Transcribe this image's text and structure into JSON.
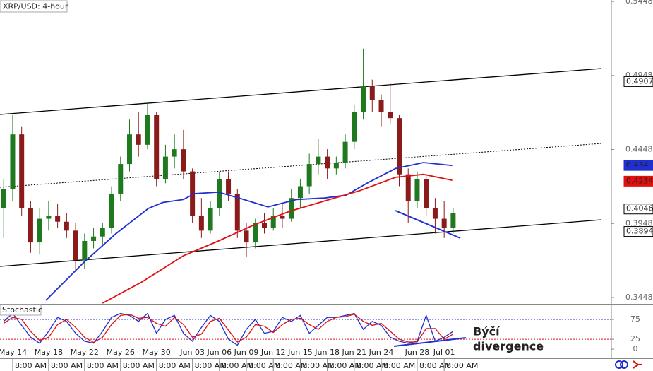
{
  "chart_data": [
    {
      "type": "candlestick",
      "title": "XRP/USD: 4-hour",
      "x": [
        -1,
        0,
        1,
        2,
        3,
        4,
        5,
        6,
        7,
        8,
        9,
        10,
        11,
        12,
        13,
        14,
        15,
        16,
        17,
        18,
        19,
        20,
        21,
        22,
        23,
        24,
        25,
        26,
        27,
        28,
        29,
        30,
        31,
        32,
        33,
        34,
        35,
        36,
        37,
        38,
        39,
        40,
        41,
        42,
        43,
        44,
        45,
        46,
        47,
        48,
        49
      ],
      "open": [
        0.405,
        0.418,
        0.455,
        0.405,
        0.382,
        0.398,
        0.4,
        0.396,
        0.39,
        0.37,
        0.383,
        0.386,
        0.392,
        0.415,
        0.435,
        0.455,
        0.448,
        0.468,
        0.425,
        0.44,
        0.445,
        0.43,
        0.4,
        0.39,
        0.405,
        0.425,
        0.415,
        0.39,
        0.382,
        0.395,
        0.392,
        0.4,
        0.398,
        0.412,
        0.42,
        0.435,
        0.44,
        0.432,
        0.436,
        0.45,
        0.47,
        0.488,
        0.478,
        0.47,
        0.466,
        0.428,
        0.41,
        0.425,
        0.405,
        0.398,
        0.392
      ],
      "high": [
        0.425,
        0.468,
        0.46,
        0.41,
        0.405,
        0.41,
        0.408,
        0.402,
        0.395,
        0.388,
        0.392,
        0.395,
        0.42,
        0.44,
        0.465,
        0.47,
        0.476,
        0.47,
        0.448,
        0.455,
        0.458,
        0.432,
        0.412,
        0.41,
        0.43,
        0.43,
        0.418,
        0.395,
        0.398,
        0.402,
        0.405,
        0.408,
        0.418,
        0.425,
        0.442,
        0.452,
        0.445,
        0.44,
        0.455,
        0.475,
        0.513,
        0.492,
        0.482,
        0.49,
        0.468,
        0.432,
        0.43,
        0.428,
        0.412,
        0.41,
        0.405
      ],
      "low": [
        0.385,
        0.41,
        0.4,
        0.375,
        0.374,
        0.39,
        0.392,
        0.385,
        0.362,
        0.364,
        0.378,
        0.38,
        0.388,
        0.41,
        0.43,
        0.44,
        0.445,
        0.42,
        0.422,
        0.432,
        0.425,
        0.395,
        0.385,
        0.388,
        0.4,
        0.41,
        0.385,
        0.372,
        0.378,
        0.388,
        0.39,
        0.392,
        0.396,
        0.405,
        0.415,
        0.428,
        0.425,
        0.428,
        0.432,
        0.445,
        0.465,
        0.47,
        0.46,
        0.462,
        0.42,
        0.395,
        0.405,
        0.4,
        0.388,
        0.385,
        0.388
      ],
      "close": [
        0.418,
        0.455,
        0.405,
        0.382,
        0.398,
        0.4,
        0.396,
        0.39,
        0.37,
        0.383,
        0.386,
        0.392,
        0.415,
        0.435,
        0.455,
        0.448,
        0.468,
        0.425,
        0.44,
        0.445,
        0.43,
        0.4,
        0.39,
        0.405,
        0.425,
        0.415,
        0.39,
        0.382,
        0.395,
        0.392,
        0.4,
        0.398,
        0.412,
        0.42,
        0.435,
        0.44,
        0.432,
        0.436,
        0.45,
        0.47,
        0.488,
        0.478,
        0.47,
        0.466,
        0.428,
        0.41,
        0.425,
        0.405,
        0.398,
        0.392,
        0.402
      ],
      "up_color": "#1f7a1f",
      "down_color": "#8b1a1a",
      "series": [
        {
          "color": "#1f2fd0",
          "x": [
            3.7,
            8.0,
            11.5,
            15.1,
            16.7,
            19.0,
            20.2,
            22.9,
            25.7,
            28.4,
            31.6,
            34.7,
            37.1,
            39.4,
            42.6,
            45.7,
            48.9
          ],
          "values": [
            0.343,
            0.369,
            0.388,
            0.405,
            0.409,
            0.411,
            0.415,
            0.416,
            0.411,
            0.406,
            0.411,
            0.412,
            0.414,
            0.422,
            0.432,
            0.436,
            0.434
          ]
        },
        {
          "color": "#e01010",
          "x": [
            10.0,
            14.3,
            19.0,
            22.9,
            26.9,
            30.8,
            34.7,
            38.6,
            42.6,
            45.7,
            48.9
          ],
          "values": [
            0.341,
            0.355,
            0.373,
            0.383,
            0.394,
            0.403,
            0.41,
            0.417,
            0.426,
            0.428,
            0.424
          ]
        }
      ],
      "price_tags": [
        0.4907,
        0.434,
        0.4234,
        0.4046,
        0.3894
      ],
      "price_tag_colors": [
        "#000000",
        "#1f2fd0",
        "#e01010",
        "#000000",
        "#000000"
      ],
      "xlim": [
        -1.41,
        66.6
      ],
      "ylim": [
        0.3405,
        0.5458
      ],
      "yticks": [
        0.5448,
        0.4948,
        0.4448,
        0.3948,
        0.3448
      ]
    },
    {
      "type": "line",
      "title": "Stochastic",
      "x": [
        -1,
        0,
        1,
        2,
        3,
        4,
        5,
        6,
        7,
        8,
        9,
        10,
        11,
        12,
        13,
        14,
        15,
        16,
        17,
        18,
        19,
        20,
        21,
        22,
        23,
        24,
        25,
        26,
        27,
        28,
        29,
        30,
        31,
        32,
        33,
        34,
        35,
        36,
        37,
        38,
        39,
        40,
        41,
        42,
        43,
        44,
        45,
        46,
        47,
        48,
        49
      ],
      "series": [
        {
          "color": "#1f2fd0",
          "values": [
            70,
            90,
            60,
            30,
            15,
            45,
            80,
            70,
            40,
            20,
            15,
            45,
            80,
            90,
            85,
            70,
            90,
            40,
            75,
            85,
            40,
            20,
            55,
            85,
            70,
            25,
            10,
            50,
            75,
            40,
            45,
            80,
            70,
            85,
            40,
            60,
            80,
            80,
            85,
            90,
            50,
            70,
            60,
            30,
            20,
            15,
            20,
            85,
            20,
            30,
            45
          ]
        },
        {
          "color": "#e01010",
          "values": [
            65,
            80,
            75,
            45,
            22,
            30,
            62,
            75,
            55,
            30,
            17,
            30,
            62,
            85,
            88,
            78,
            80,
            65,
            58,
            80,
            62,
            30,
            38,
            70,
            78,
            48,
            18,
            30,
            62,
            58,
            42,
            62,
            75,
            78,
            62,
            50,
            70,
            80,
            82,
            88,
            70,
            60,
            65,
            45,
            25,
            18,
            18,
            52,
            52,
            25,
            38
          ]
        }
      ],
      "levels": [
        75,
        25
      ],
      "level_colors": [
        "#1f2fd0",
        "#e01010"
      ],
      "annotation": [
        "Býčí",
        "divergence"
      ],
      "xlim": [
        -1.41,
        66.6
      ],
      "ylim": [
        -23,
        112.5
      ],
      "yticks": [
        75,
        25,
        0
      ],
      "xticks": [
        {
          "value": 0,
          "label": "May 14"
        },
        {
          "value": 4,
          "label": "May 18"
        },
        {
          "value": 8,
          "label": "May 22"
        },
        {
          "value": 12,
          "label": "May 26"
        },
        {
          "value": 16,
          "label": "May 30"
        },
        {
          "value": 20,
          "label": "Jun 03"
        },
        {
          "value": 23,
          "label": "Jun 06"
        },
        {
          "value": 26,
          "label": "Jun 09"
        },
        {
          "value": 29,
          "label": "Jun 12"
        },
        {
          "value": 32,
          "label": "Jun 15"
        },
        {
          "value": 35,
          "label": "Jun 18"
        },
        {
          "value": 38,
          "label": "Jun 21"
        },
        {
          "value": 41,
          "label": "Jun 24"
        },
        {
          "value": 45,
          "label": "Jun 28"
        },
        {
          "value": 48,
          "label": "Jul 01"
        }
      ],
      "time_labels": [
        "8:00 AM",
        "8:00 AM",
        "8:00 AM",
        "8:00 AM",
        "8:00 AM",
        "8:00 AM",
        "8:00 AM",
        "8:00 AM",
        "8:00 AM",
        "8:00 AM",
        "8:00 AM",
        "8:00 AM",
        "8:00 AM",
        "8:00 AM",
        "8:00 AM"
      ]
    }
  ]
}
